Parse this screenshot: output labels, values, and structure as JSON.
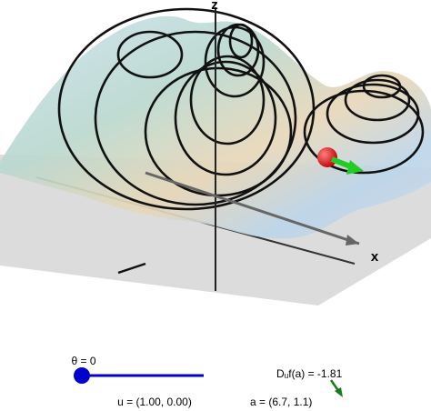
{
  "view": {
    "z_axis_label": "z",
    "x_axis_label": "x"
  },
  "slider": {
    "label": "θ = 0"
  },
  "outputs": {
    "direction": "u = (1.00, 0.00)",
    "derivative": "Dᵤf(a) = -1.81",
    "point": "a = (6.7, 1.1)"
  }
}
